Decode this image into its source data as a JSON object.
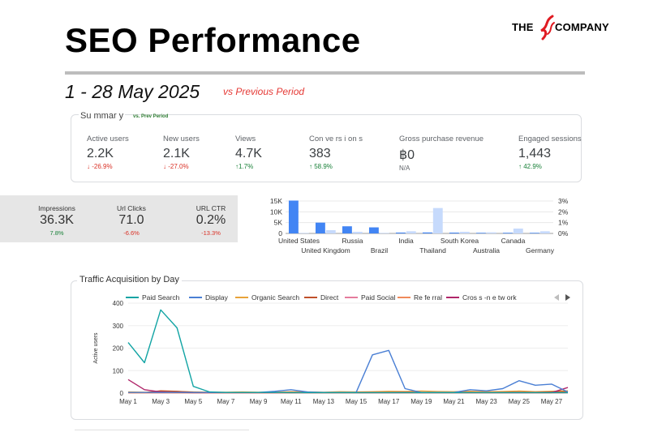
{
  "header": {
    "title": "SEO Performance",
    "date_range": "1 - 28 May 2025",
    "compare": "vs Previous Period",
    "logo_left": "THE",
    "logo_right": "COMPANY"
  },
  "colors": {
    "negative": "#d93025",
    "positive": "#188038",
    "bar_dark": "#4285f4",
    "bar_light": "#c6dafc"
  },
  "summary": {
    "title": "Su mmar y",
    "subtitle": "vs. Prev Period",
    "kpis": [
      {
        "label": "Active users",
        "value": "2.2K",
        "change": "↓ -26.9%",
        "trend": "neg"
      },
      {
        "label": "New users",
        "value": "2.1K",
        "change": "↓ -27.0%",
        "trend": "neg"
      },
      {
        "label": "Views",
        "value": "4.7K",
        "change": "↑1.7%",
        "trend": "pos"
      },
      {
        "label": "Con ve rs i on s",
        "value": "383",
        "change": "↑ 58.9%",
        "trend": "pos"
      },
      {
        "label": "Gross purchase revenue",
        "value": "฿0",
        "change": "N/A",
        "trend": "na"
      },
      {
        "label": "Engaged sessions",
        "value": "1,443",
        "change": "↑ 42.9%",
        "trend": "pos"
      }
    ]
  },
  "search_console": {
    "kpis": [
      {
        "label": "Impressions",
        "value": "36.3K",
        "change": "7.8%",
        "trend": "pos"
      },
      {
        "label": "Url Clicks",
        "value": "71.0",
        "change": "-6.6%",
        "trend": "neg"
      },
      {
        "label": "URL CTR",
        "value": "0.2%",
        "change": "-13.3%",
        "trend": "neg"
      }
    ]
  },
  "chart_data": [
    {
      "type": "bar",
      "categories": [
        "United States",
        "United Kingdom",
        "Russia",
        "Brazil",
        "India",
        "Thailand",
        "South Korea",
        "Australia",
        "Canada",
        "Germany"
      ],
      "series": [
        {
          "values": [
            15200,
            5000,
            3300,
            2800,
            400,
            450,
            380,
            280,
            300,
            280
          ]
        },
        {
          "values": [
            0.05,
            0.3,
            0.15,
            0.05,
            0.2,
            2.35,
            0.15,
            0.1,
            0.45,
            0.2
          ]
        }
      ],
      "y_left_ticks": [
        "15K",
        "10K",
        "5K",
        "0"
      ],
      "y_right_ticks": [
        "3%",
        "2%",
        "1%",
        "0%"
      ],
      "ylim_left": [
        0,
        15000
      ],
      "ylim_right": [
        0,
        3
      ],
      "grid": true
    },
    {
      "type": "line",
      "title": "Traffic Acquisition by Day",
      "ylabel": "Active users",
      "xlabel": "",
      "x": [
        "May 1",
        "May 2",
        "May 3",
        "May 4",
        "May 5",
        "May 6",
        "May 7",
        "May 8",
        "May 9",
        "May 10",
        "May 11",
        "May 12",
        "May 13",
        "May 14",
        "May 15",
        "May 16",
        "May 17",
        "May 18",
        "May 19",
        "May 20",
        "May 21",
        "May 22",
        "May 23",
        "May 24",
        "May 25",
        "May 26",
        "May 27",
        "May 28"
      ],
      "x_tick_labels": [
        "May 1",
        "May 3",
        "May 5",
        "May 7",
        "May 9",
        "May 11",
        "May 13",
        "May 15",
        "May 17",
        "May 19",
        "May 21",
        "May 23",
        "May 25",
        "May 27"
      ],
      "y_ticks": [
        "400",
        "300",
        "200",
        "100",
        "0"
      ],
      "ylim": [
        0,
        400
      ],
      "legend_position": "top",
      "series": [
        {
          "name": "Paid Search",
          "color": "#12a4a4",
          "values": [
            225,
            135,
            370,
            290,
            30,
            5,
            3,
            3,
            3,
            3,
            2,
            2,
            2,
            2,
            2,
            2,
            2,
            2,
            2,
            2,
            2,
            2,
            2,
            2,
            2,
            2,
            2,
            2
          ]
        },
        {
          "name": "Display",
          "color": "#4a7fd4",
          "values": [
            3,
            3,
            3,
            3,
            3,
            3,
            3,
            3,
            3,
            8,
            15,
            5,
            3,
            3,
            3,
            170,
            190,
            20,
            3,
            3,
            3,
            15,
            10,
            20,
            55,
            35,
            40,
            5
          ]
        },
        {
          "name": "Organic Search",
          "color": "#e8a33a",
          "values": [
            5,
            4,
            6,
            7,
            5,
            4,
            4,
            5,
            4,
            4,
            6,
            5,
            4,
            6,
            5,
            6,
            8,
            7,
            9,
            7,
            6,
            8,
            6,
            7,
            9,
            6,
            8,
            10
          ]
        },
        {
          "name": "Direct",
          "color": "#c0502a",
          "values": [
            3,
            2,
            10,
            8,
            4,
            2,
            3,
            3,
            2,
            3,
            3,
            2,
            3,
            3,
            2,
            3,
            3,
            4,
            3,
            2,
            3,
            3,
            2,
            3,
            4,
            3,
            5,
            6
          ]
        },
        {
          "name": "Paid Social",
          "color": "#e57c9c",
          "values": [
            1,
            1,
            1,
            1,
            1,
            1,
            1,
            1,
            1,
            1,
            1,
            1,
            1,
            1,
            1,
            1,
            1,
            1,
            1,
            1,
            1,
            1,
            1,
            1,
            1,
            1,
            1,
            1
          ]
        },
        {
          "name": "Re fe rral",
          "color": "#f08a5a",
          "values": [
            1,
            1,
            2,
            1,
            1,
            1,
            1,
            2,
            1,
            1,
            1,
            1,
            1,
            1,
            1,
            1,
            2,
            1,
            1,
            1,
            1,
            1,
            1,
            1,
            2,
            1,
            1,
            2
          ]
        },
        {
          "name": "Cros s -n e tw ork",
          "color": "#b0266a",
          "values": [
            60,
            15,
            5,
            3,
            2,
            2,
            2,
            2,
            2,
            2,
            2,
            2,
            2,
            2,
            2,
            2,
            2,
            2,
            2,
            2,
            2,
            2,
            2,
            2,
            2,
            2,
            2,
            25
          ]
        }
      ]
    }
  ]
}
